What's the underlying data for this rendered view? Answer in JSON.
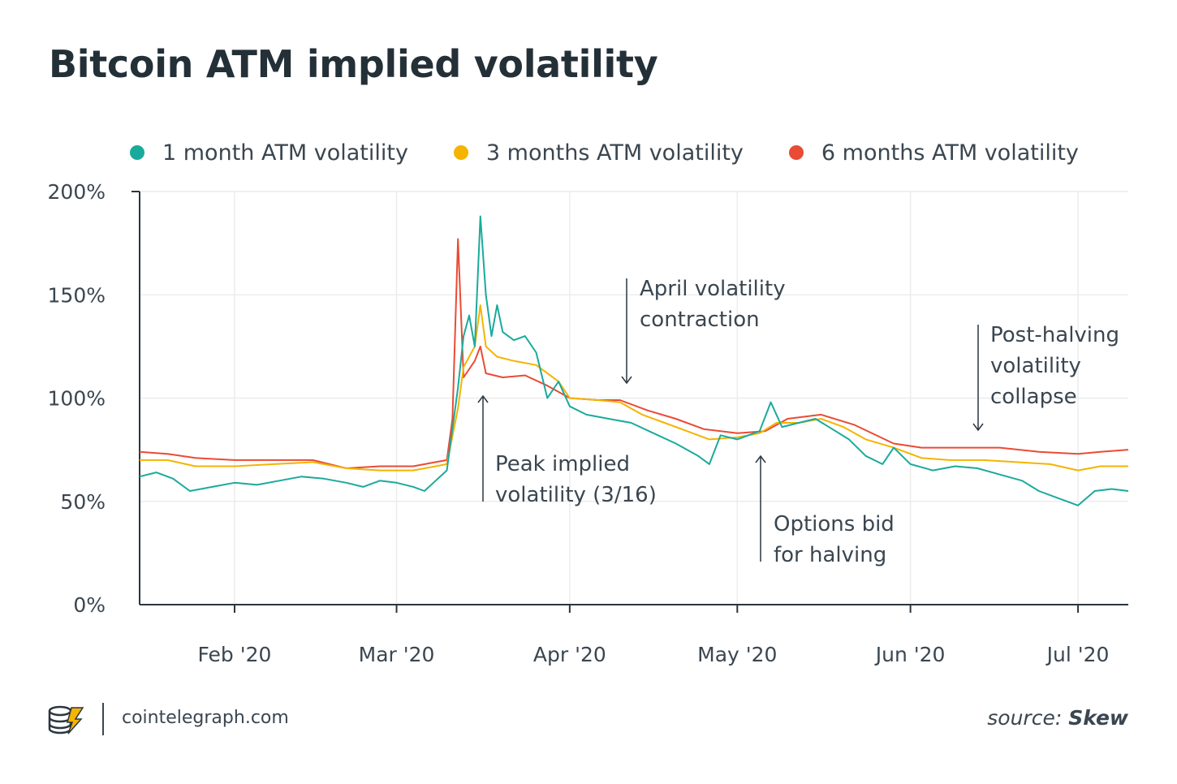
{
  "header": {
    "title": "Bitcoin ATM implied volatility"
  },
  "legend": [
    {
      "label": "1 month ATM volatility",
      "color": "#1aaa9c"
    },
    {
      "label": "3 months ATM volatility",
      "color": "#f4b400"
    },
    {
      "label": "6 months ATM volatility",
      "color": "#e94b35"
    }
  ],
  "footer": {
    "site": "cointelegraph.com",
    "source_prefix": "source:",
    "source_name": "Skew"
  },
  "chart_data": {
    "type": "line",
    "title": "Bitcoin ATM implied volatility",
    "x_range": [
      "2020-01-15",
      "2020-07-10"
    ],
    "ylim": [
      0,
      200
    ],
    "y_ticks": [
      0,
      50,
      100,
      150,
      200
    ],
    "y_tick_labels": [
      "0%",
      "50%",
      "100%",
      "150%",
      "200%"
    ],
    "x_ticks": [
      "2020-02-01",
      "2020-03-01",
      "2020-04-01",
      "2020-05-01",
      "2020-06-01",
      "2020-07-01"
    ],
    "x_tick_labels": [
      "Feb '20",
      "Mar '20",
      "Apr '20",
      "May '20",
      "Jun '20",
      "Jul '20"
    ],
    "grid": true,
    "legend_position": "top",
    "series": [
      {
        "name": "1 month ATM volatility",
        "color": "#1aaa9c",
        "points": [
          [
            "2020-01-15",
            62
          ],
          [
            "2020-01-18",
            64
          ],
          [
            "2020-01-21",
            61
          ],
          [
            "2020-01-24",
            55
          ],
          [
            "2020-01-28",
            57
          ],
          [
            "2020-02-01",
            59
          ],
          [
            "2020-02-05",
            58
          ],
          [
            "2020-02-09",
            60
          ],
          [
            "2020-02-13",
            62
          ],
          [
            "2020-02-17",
            61
          ],
          [
            "2020-02-21",
            59
          ],
          [
            "2020-02-24",
            57
          ],
          [
            "2020-02-27",
            60
          ],
          [
            "2020-03-01",
            59
          ],
          [
            "2020-03-04",
            57
          ],
          [
            "2020-03-06",
            55
          ],
          [
            "2020-03-08",
            60
          ],
          [
            "2020-03-10",
            65
          ],
          [
            "2020-03-12",
            105
          ],
          [
            "2020-03-13",
            130
          ],
          [
            "2020-03-14",
            140
          ],
          [
            "2020-03-15",
            125
          ],
          [
            "2020-03-16",
            188
          ],
          [
            "2020-03-17",
            150
          ],
          [
            "2020-03-18",
            130
          ],
          [
            "2020-03-19",
            145
          ],
          [
            "2020-03-20",
            132
          ],
          [
            "2020-03-22",
            128
          ],
          [
            "2020-03-24",
            130
          ],
          [
            "2020-03-26",
            122
          ],
          [
            "2020-03-28",
            100
          ],
          [
            "2020-03-30",
            108
          ],
          [
            "2020-04-01",
            96
          ],
          [
            "2020-04-04",
            92
          ],
          [
            "2020-04-08",
            90
          ],
          [
            "2020-04-12",
            88
          ],
          [
            "2020-04-16",
            83
          ],
          [
            "2020-04-20",
            78
          ],
          [
            "2020-04-24",
            72
          ],
          [
            "2020-04-26",
            68
          ],
          [
            "2020-04-28",
            82
          ],
          [
            "2020-05-01",
            80
          ],
          [
            "2020-05-05",
            84
          ],
          [
            "2020-05-07",
            98
          ],
          [
            "2020-05-09",
            86
          ],
          [
            "2020-05-12",
            88
          ],
          [
            "2020-05-15",
            90
          ],
          [
            "2020-05-18",
            85
          ],
          [
            "2020-05-21",
            80
          ],
          [
            "2020-05-24",
            72
          ],
          [
            "2020-05-27",
            68
          ],
          [
            "2020-05-29",
            76
          ],
          [
            "2020-06-01",
            68
          ],
          [
            "2020-06-05",
            65
          ],
          [
            "2020-06-09",
            67
          ],
          [
            "2020-06-13",
            66
          ],
          [
            "2020-06-17",
            63
          ],
          [
            "2020-06-21",
            60
          ],
          [
            "2020-06-24",
            55
          ],
          [
            "2020-06-27",
            52
          ],
          [
            "2020-07-01",
            48
          ],
          [
            "2020-07-04",
            55
          ],
          [
            "2020-07-07",
            56
          ],
          [
            "2020-07-10",
            55
          ]
        ]
      },
      {
        "name": "3 months ATM volatility",
        "color": "#f4b400",
        "points": [
          [
            "2020-01-15",
            70
          ],
          [
            "2020-01-20",
            70
          ],
          [
            "2020-01-25",
            67
          ],
          [
            "2020-02-01",
            67
          ],
          [
            "2020-02-08",
            68
          ],
          [
            "2020-02-15",
            69
          ],
          [
            "2020-02-21",
            66
          ],
          [
            "2020-02-27",
            65
          ],
          [
            "2020-03-04",
            65
          ],
          [
            "2020-03-08",
            67
          ],
          [
            "2020-03-10",
            68
          ],
          [
            "2020-03-12",
            95
          ],
          [
            "2020-03-13",
            115
          ],
          [
            "2020-03-15",
            125
          ],
          [
            "2020-03-16",
            145
          ],
          [
            "2020-03-17",
            125
          ],
          [
            "2020-03-19",
            120
          ],
          [
            "2020-03-22",
            118
          ],
          [
            "2020-03-26",
            116
          ],
          [
            "2020-03-30",
            108
          ],
          [
            "2020-04-01",
            100
          ],
          [
            "2020-04-06",
            99
          ],
          [
            "2020-04-10",
            98
          ],
          [
            "2020-04-14",
            92
          ],
          [
            "2020-04-18",
            88
          ],
          [
            "2020-04-22",
            84
          ],
          [
            "2020-04-26",
            80
          ],
          [
            "2020-05-01",
            81
          ],
          [
            "2020-05-05",
            83
          ],
          [
            "2020-05-08",
            88
          ],
          [
            "2020-05-12",
            88
          ],
          [
            "2020-05-16",
            90
          ],
          [
            "2020-05-20",
            86
          ],
          [
            "2020-05-24",
            80
          ],
          [
            "2020-05-29",
            76
          ],
          [
            "2020-06-03",
            71
          ],
          [
            "2020-06-08",
            70
          ],
          [
            "2020-06-14",
            70
          ],
          [
            "2020-06-20",
            69
          ],
          [
            "2020-06-26",
            68
          ],
          [
            "2020-07-01",
            65
          ],
          [
            "2020-07-05",
            67
          ],
          [
            "2020-07-10",
            67
          ]
        ]
      },
      {
        "name": "6 months ATM volatility",
        "color": "#e94b35",
        "points": [
          [
            "2020-01-15",
            74
          ],
          [
            "2020-01-20",
            73
          ],
          [
            "2020-01-25",
            71
          ],
          [
            "2020-02-01",
            70
          ],
          [
            "2020-02-08",
            70
          ],
          [
            "2020-02-15",
            70
          ],
          [
            "2020-02-21",
            66
          ],
          [
            "2020-02-27",
            67
          ],
          [
            "2020-03-04",
            67
          ],
          [
            "2020-03-08",
            69
          ],
          [
            "2020-03-10",
            70
          ],
          [
            "2020-03-11",
            90
          ],
          [
            "2020-03-12",
            177
          ],
          [
            "2020-03-13",
            110
          ],
          [
            "2020-03-15",
            118
          ],
          [
            "2020-03-16",
            125
          ],
          [
            "2020-03-17",
            112
          ],
          [
            "2020-03-20",
            110
          ],
          [
            "2020-03-24",
            111
          ],
          [
            "2020-03-28",
            106
          ],
          [
            "2020-04-01",
            100
          ],
          [
            "2020-04-06",
            99
          ],
          [
            "2020-04-10",
            99
          ],
          [
            "2020-04-15",
            94
          ],
          [
            "2020-04-20",
            90
          ],
          [
            "2020-04-25",
            85
          ],
          [
            "2020-05-01",
            83
          ],
          [
            "2020-05-06",
            84
          ],
          [
            "2020-05-10",
            90
          ],
          [
            "2020-05-16",
            92
          ],
          [
            "2020-05-22",
            87
          ],
          [
            "2020-05-29",
            78
          ],
          [
            "2020-06-03",
            76
          ],
          [
            "2020-06-10",
            76
          ],
          [
            "2020-06-17",
            76
          ],
          [
            "2020-06-24",
            74
          ],
          [
            "2020-07-01",
            73
          ],
          [
            "2020-07-05",
            74
          ],
          [
            "2020-07-10",
            75
          ]
        ]
      }
    ],
    "annotations": [
      {
        "lines": [
          "April volatility",
          "contraction"
        ],
        "x": "2020-04-10",
        "y": 107,
        "arrow": "down"
      },
      {
        "lines": [
          "Peak implied",
          "volatility (3/16)"
        ],
        "x": "2020-03-16",
        "y": 101,
        "arrow": "up"
      },
      {
        "lines": [
          "Options bid",
          "for halving"
        ],
        "x": "2020-05-05",
        "y": 73,
        "arrow": "up"
      },
      {
        "lines": [
          "Post-halving",
          "volatility",
          "collapse"
        ],
        "x": "2020-06-17",
        "y": 84,
        "arrow": "down"
      }
    ]
  }
}
